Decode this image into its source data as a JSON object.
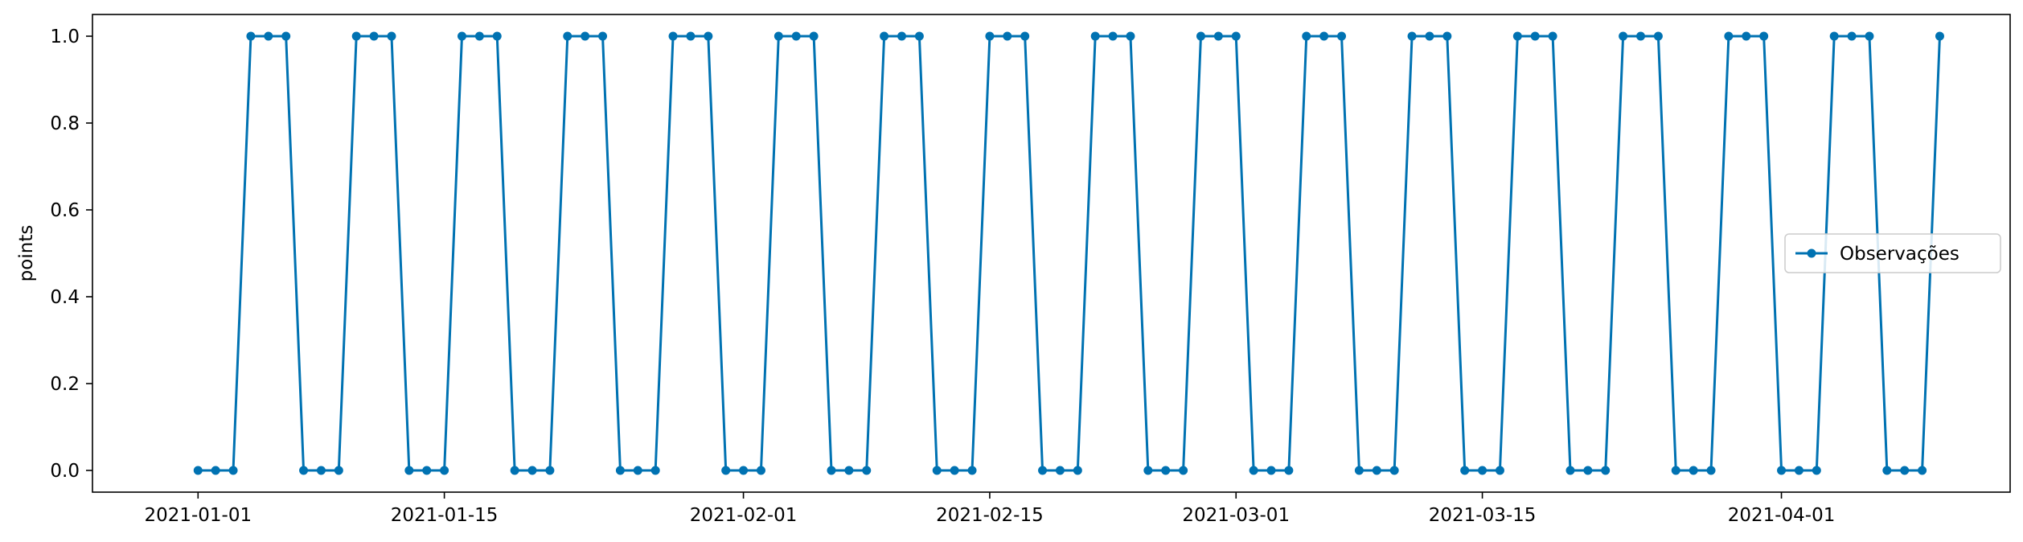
{
  "chart_data": {
    "type": "line",
    "title": "",
    "xlabel": "",
    "ylabel": "points",
    "x_start": "2021-01-01",
    "x_end": "2021-04-09",
    "xlim": [
      "2020-12-26",
      "2021-04-14"
    ],
    "ylim": [
      -0.05,
      1.05
    ],
    "grid": false,
    "legend": {
      "placement": "center-right",
      "entries": [
        "Observações"
      ]
    },
    "x_ticks": [
      {
        "date": "2021-01-01",
        "label": "2021-01-01"
      },
      {
        "date": "2021-01-15",
        "label": "2021-01-15"
      },
      {
        "date": "2021-02-01",
        "label": "2021-02-01"
      },
      {
        "date": "2021-02-15",
        "label": "2021-02-15"
      },
      {
        "date": "2021-03-01",
        "label": "2021-03-01"
      },
      {
        "date": "2021-03-15",
        "label": "2021-03-15"
      },
      {
        "date": "2021-04-01",
        "label": "2021-04-01"
      }
    ],
    "y_ticks": [
      {
        "value": 0.0,
        "label": "0.0"
      },
      {
        "value": 0.2,
        "label": "0.2"
      },
      {
        "value": 0.4,
        "label": "0.4"
      },
      {
        "value": 0.6,
        "label": "0.6"
      },
      {
        "value": 0.8,
        "label": "0.8"
      },
      {
        "value": 1.0,
        "label": "1.0"
      }
    ],
    "series": [
      {
        "name": "Observações",
        "color": "#0072b2",
        "marker": "circle",
        "values": [
          0,
          0,
          0,
          1,
          1,
          1,
          0,
          0,
          0,
          1,
          1,
          1,
          0,
          0,
          0,
          1,
          1,
          1,
          0,
          0,
          0,
          1,
          1,
          1,
          0,
          0,
          0,
          1,
          1,
          1,
          0,
          0,
          0,
          1,
          1,
          1,
          0,
          0,
          0,
          1,
          1,
          1,
          0,
          0,
          0,
          1,
          1,
          1,
          0,
          0,
          0,
          1,
          1,
          1,
          0,
          0,
          0,
          1,
          1,
          1,
          0,
          0,
          0,
          1,
          1,
          1,
          0,
          0,
          0,
          1,
          1,
          1,
          0,
          0,
          0,
          1,
          1,
          1,
          0,
          0,
          0,
          1,
          1,
          1,
          0,
          0,
          0,
          1,
          1,
          1,
          0,
          0,
          0,
          1,
          1,
          1,
          0,
          0,
          0,
          1
        ]
      }
    ]
  }
}
